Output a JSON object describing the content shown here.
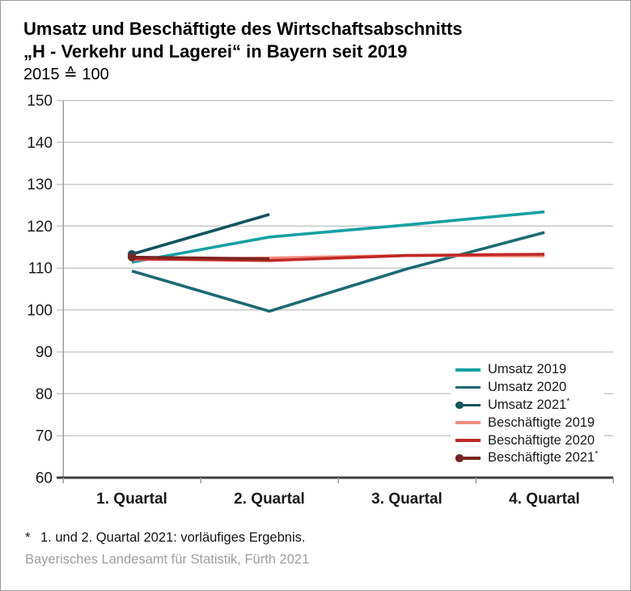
{
  "header": {
    "title_line1": "Umsatz und Beschäftigte des Wirtschaftsabschnitts",
    "title_line2": "„H - Verkehr und Lagerei“ in Bayern seit 2019",
    "subtitle": "2015 ≙ 100"
  },
  "chart_data": {
    "type": "line",
    "categories": [
      "1. Quartal",
      "2. Quartal",
      "3. Quartal",
      "4. Quartal"
    ],
    "series": [
      {
        "name": "Umsatz 2019",
        "color": "#14a0a0",
        "values": [
          111.4,
          117.4,
          120.3,
          123.4
        ],
        "marker_start": false,
        "footnote": false
      },
      {
        "name": "Umsatz 2020",
        "color": "#1c6a72",
        "values": [
          109.3,
          99.7,
          109.8,
          118.5
        ],
        "marker_start": false,
        "footnote": false
      },
      {
        "name": "Umsatz 2021",
        "color": "#12545c",
        "values": [
          113.3,
          122.8,
          null,
          null
        ],
        "marker_start": true,
        "footnote": true
      },
      {
        "name": "Beschäftigte 2019",
        "color": "#f28d7e",
        "values": [
          112.0,
          112.4,
          113.0,
          112.9
        ],
        "marker_start": false,
        "footnote": false
      },
      {
        "name": "Beschäftigte 2020",
        "color": "#c02827",
        "values": [
          112.2,
          111.8,
          113.0,
          113.3
        ],
        "marker_start": false,
        "footnote": false
      },
      {
        "name": "Beschäftigte 2021",
        "color": "#7a2420",
        "values": [
          112.6,
          112.2,
          null,
          null
        ],
        "marker_start": true,
        "footnote": true
      }
    ],
    "ylim": [
      60,
      150
    ],
    "ytick_step": 10,
    "grid": true,
    "legend_position": "lower right",
    "colors": {
      "grid": "#c9c9c9",
      "axis_light": "#9c9c9c",
      "axis_dark": "#3f3f3f",
      "tick_text": "#1a1a1a"
    }
  },
  "footnote": {
    "marker": "*",
    "text": "1. und 2. Quartal 2021: vorläufiges Ergebnis."
  },
  "source": "Bayerisches Landesamt für Statistik, Fürth 2021"
}
